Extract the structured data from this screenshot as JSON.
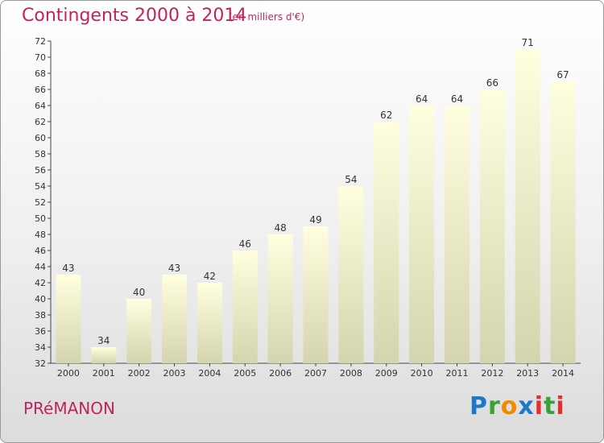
{
  "header": {
    "title": "Contingents 2000 à 2014",
    "subtitle": "(en milliers d'€)"
  },
  "footer": {
    "place": "PRéMANON",
    "logo": "Proxiti"
  },
  "colors": {
    "title": "#c0245e",
    "bar_top": "#ffffe0",
    "bar_bottom": "#d6d6b0"
  },
  "chart_data": {
    "type": "bar",
    "title": "Contingents 2000 à 2014",
    "subtitle": "(en milliers d'€)",
    "xlabel": "",
    "ylabel": "",
    "categories": [
      "2000",
      "2001",
      "2002",
      "2003",
      "2004",
      "2005",
      "2006",
      "2007",
      "2008",
      "2009",
      "2010",
      "2011",
      "2012",
      "2013",
      "2014"
    ],
    "values": [
      43,
      34,
      40,
      43,
      42,
      46,
      48,
      49,
      54,
      62,
      64,
      64,
      66,
      71,
      67
    ],
    "ylim": [
      32,
      72
    ],
    "yticks": [
      32,
      34,
      36,
      38,
      40,
      42,
      44,
      46,
      48,
      50,
      52,
      54,
      56,
      58,
      60,
      62,
      64,
      66,
      68,
      70,
      72
    ],
    "grid": false,
    "data_labels": true
  }
}
